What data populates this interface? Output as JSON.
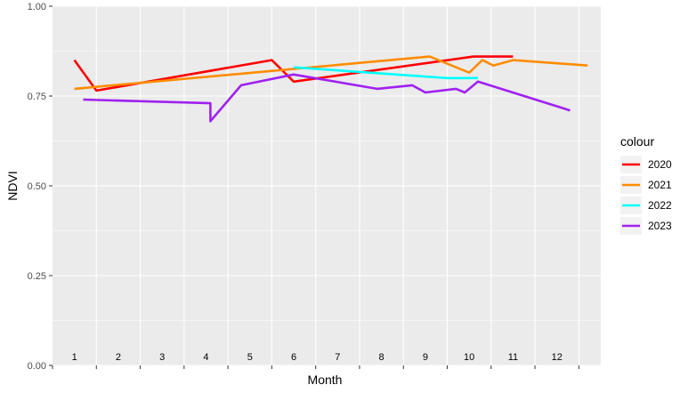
{
  "chart_data": {
    "type": "line",
    "xlabel": "Month",
    "ylabel": "NDVI",
    "ylim": [
      0,
      1
    ],
    "y_ticks": [
      "0.00",
      "0.25",
      "0.50",
      "0.75",
      "1.00"
    ],
    "y_tick_values": [
      0,
      0.25,
      0.5,
      0.75,
      1.0
    ],
    "month_labels": [
      "1",
      "2",
      "3",
      "4",
      "5",
      "6",
      "7",
      "8",
      "9",
      "10",
      "11",
      "12"
    ],
    "grid": true,
    "legend_title": "colour",
    "legend_position": "right",
    "series": [
      {
        "name": "2020",
        "color": "#FF0000",
        "points": [
          [
            0.5,
            0.85
          ],
          [
            1.0,
            0.765
          ],
          [
            5.0,
            0.85
          ],
          [
            5.5,
            0.79
          ],
          [
            9.6,
            0.86
          ],
          [
            10.5,
            0.86
          ]
        ]
      },
      {
        "name": "2021",
        "color": "#FF8C00",
        "points": [
          [
            0.5,
            0.77
          ],
          [
            8.6,
            0.86
          ],
          [
            9.5,
            0.815
          ],
          [
            9.8,
            0.85
          ],
          [
            10.05,
            0.835
          ],
          [
            10.5,
            0.85
          ],
          [
            12.2,
            0.835
          ]
        ]
      },
      {
        "name": "2022",
        "color": "#00FFFF",
        "points": [
          [
            5.5,
            0.83
          ],
          [
            9.0,
            0.8
          ],
          [
            9.7,
            0.8
          ]
        ]
      },
      {
        "name": "2023",
        "color": "#A020F0",
        "points": [
          [
            0.7,
            0.74
          ],
          [
            3.6,
            0.73
          ],
          [
            3.6,
            0.68
          ],
          [
            4.3,
            0.78
          ],
          [
            5.5,
            0.81
          ],
          [
            7.4,
            0.77
          ],
          [
            8.2,
            0.78
          ],
          [
            8.5,
            0.76
          ],
          [
            9.2,
            0.77
          ],
          [
            9.4,
            0.76
          ],
          [
            9.7,
            0.79
          ],
          [
            11.8,
            0.71
          ]
        ]
      }
    ]
  }
}
